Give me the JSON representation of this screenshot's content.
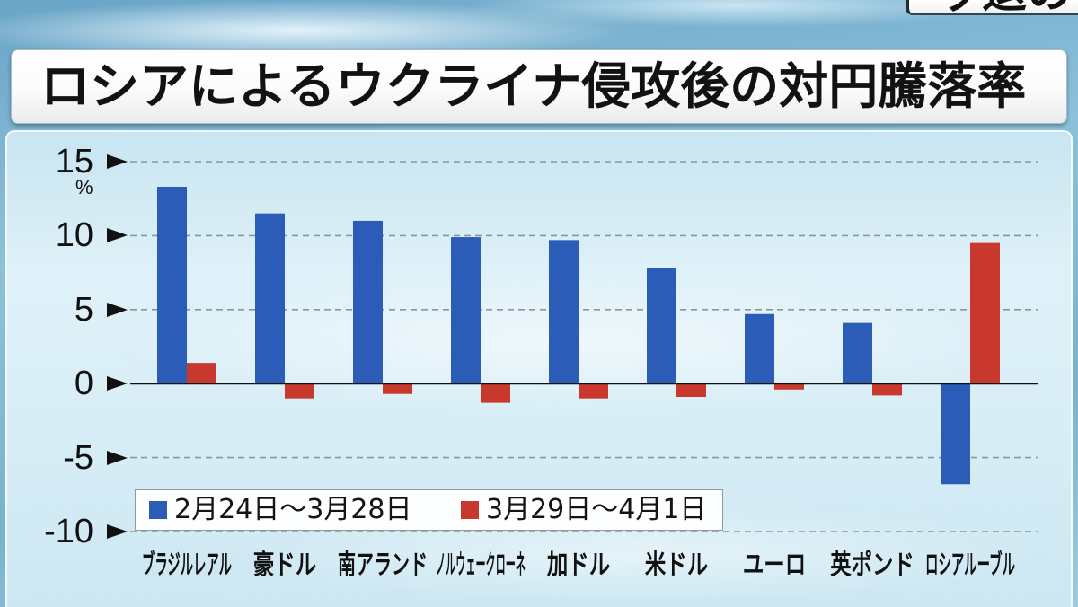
{
  "header": {
    "corner_tab_text": "ッ退の"
  },
  "chart_data": {
    "type": "bar",
    "title": "ロシアによるウクライナ侵攻後の対円騰落率",
    "xlabel": "",
    "ylabel": "%",
    "ylim": [
      -10,
      15
    ],
    "y_ticks": [
      15,
      10,
      5,
      0,
      -5,
      -10
    ],
    "y_tick_labels": [
      "15",
      "10",
      "5",
      "0",
      "-5",
      "-10"
    ],
    "grid": true,
    "legend_position": "bottom-left",
    "categories": [
      "ブラジルレアル",
      "豪ドル",
      "南アランド",
      "ノルウェークローネ",
      "加ドル",
      "米ドル",
      "ユーロ",
      "英ポンド",
      "ロシアルーブル"
    ],
    "series": [
      {
        "name": "2月24日～3月28日",
        "color": "#2b5cb7",
        "values": [
          13.3,
          11.5,
          11.0,
          9.9,
          9.7,
          7.8,
          4.7,
          4.1,
          -6.8
        ]
      },
      {
        "name": "3月29日～4月1日",
        "color": "#c9382c",
        "values": [
          1.4,
          -1.0,
          -0.7,
          -1.3,
          -1.0,
          -0.9,
          -0.4,
          -0.8,
          9.5
        ]
      }
    ]
  }
}
